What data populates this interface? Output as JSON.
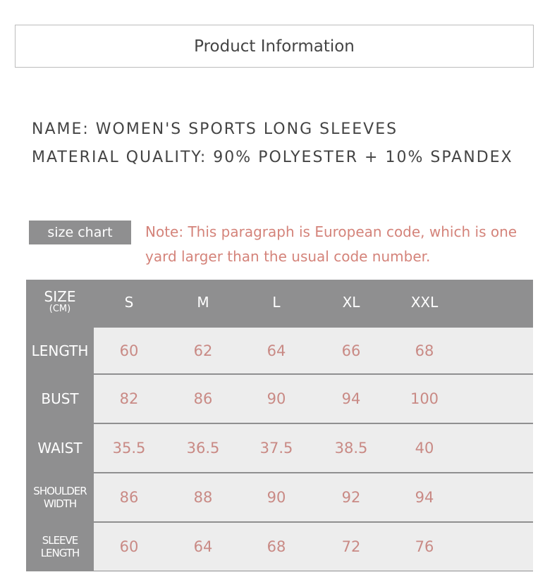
{
  "title": "Product Information",
  "name_line": "NAME: WOMEN'S SPORTS LONG SLEEVES",
  "material_line": "MATERIAL QUALITY: 90% POLYESTER + 10% SPANDEX",
  "size_chart_label": "size chart",
  "note": "Note: This paragraph is European code, which is one yard larger than the usual code number.",
  "table": {
    "corner": {
      "main": "SIZE",
      "unit": "(CM)"
    },
    "sizes": [
      "S",
      "M",
      "L",
      "XL",
      "XXL"
    ],
    "rows": [
      {
        "label": "LENGTH",
        "values": [
          "60",
          "62",
          "64",
          "66",
          "68"
        ]
      },
      {
        "label": "BUST",
        "values": [
          "82",
          "86",
          "90",
          "94",
          "100"
        ]
      },
      {
        "label": "WAIST",
        "values": [
          "35.5",
          "36.5",
          "37.5",
          "38.5",
          "40"
        ]
      },
      {
        "label": "SHOULDER WIDTH",
        "values": [
          "86",
          "88",
          "90",
          "92",
          "94"
        ]
      },
      {
        "label": "SLEEVE LENGTH",
        "values": [
          "60",
          "64",
          "68",
          "72",
          "76"
        ]
      }
    ]
  },
  "colors": {
    "header_gray": "#8f8f90",
    "cell_bg": "#ededed",
    "value_color": "#c98a85",
    "note_color": "#d4837a"
  }
}
